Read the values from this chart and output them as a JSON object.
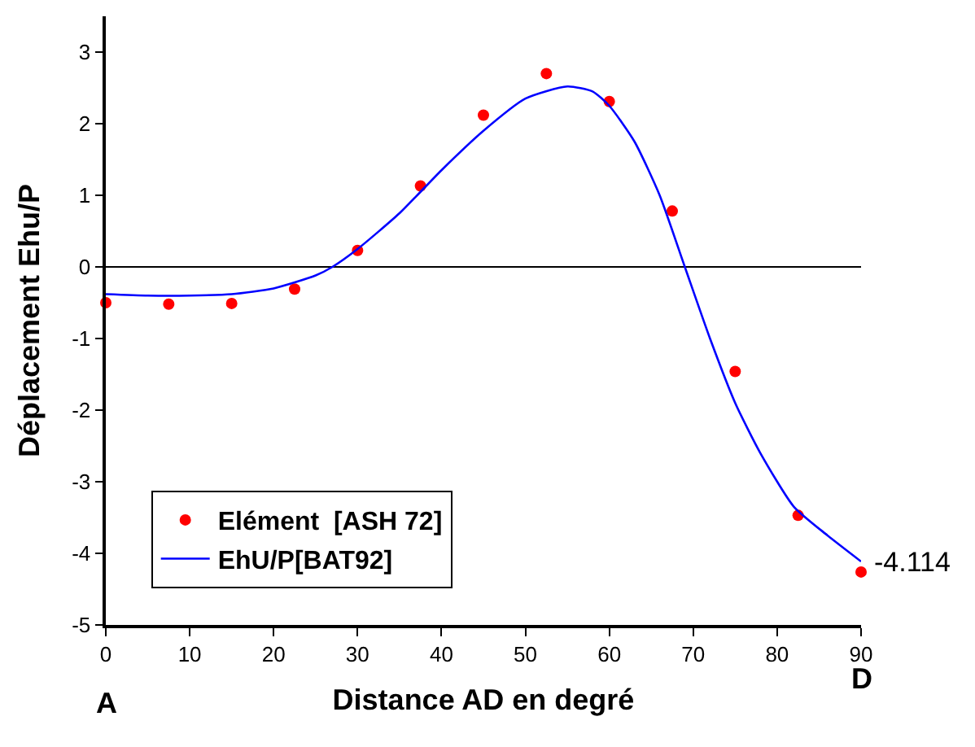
{
  "chart_data": {
    "type": "scatter",
    "xlabel": "Distance AD en degré",
    "ylabel": "Déplacement Ehu/P",
    "xlim": [
      0,
      90
    ],
    "xticks": [
      0,
      10,
      20,
      30,
      40,
      50,
      60,
      70,
      80,
      90
    ],
    "ylim": [
      -5,
      3.5
    ],
    "yticks": [
      -5,
      -4,
      -3,
      -2,
      -1,
      0,
      1,
      2,
      3
    ],
    "series": [
      {
        "name": "Elément  [ASH 72]",
        "color": "#ff0000",
        "marker": "circle",
        "x": [
          0,
          7.5,
          15,
          22.5,
          30,
          37.5,
          45,
          52.5,
          60,
          67.5,
          75,
          82.5,
          90
        ],
        "values": [
          -0.5,
          -0.52,
          -0.51,
          -0.31,
          0.23,
          1.13,
          2.12,
          2.7,
          2.31,
          0.78,
          -1.46,
          -3.47,
          -4.26
        ]
      },
      {
        "name": "EhU/P[BAT92]",
        "type": "line",
        "color": "#0000ff",
        "line_style": "solid",
        "x": [
          0,
          5,
          10,
          15,
          20,
          25,
          27,
          30,
          35,
          40,
          45,
          50,
          55,
          58,
          60,
          63,
          66,
          69,
          72,
          75,
          78,
          82,
          86,
          90
        ],
        "values": [
          -0.38,
          -0.4,
          -0.4,
          -0.38,
          -0.3,
          -0.12,
          0,
          0.25,
          0.75,
          1.35,
          1.9,
          2.35,
          2.52,
          2.45,
          2.25,
          1.75,
          1.0,
          0,
          -1.0,
          -1.9,
          -2.6,
          -3.35,
          -3.75,
          -4.114
        ]
      }
    ],
    "ref_lines": [
      {
        "axis": "y",
        "value": 0,
        "color": "#000000"
      }
    ],
    "annotations": [
      {
        "text": "-4.114",
        "x": 90,
        "y": -4.114
      },
      "A",
      "D"
    ],
    "legend": "bottom left",
    "grid": false
  }
}
